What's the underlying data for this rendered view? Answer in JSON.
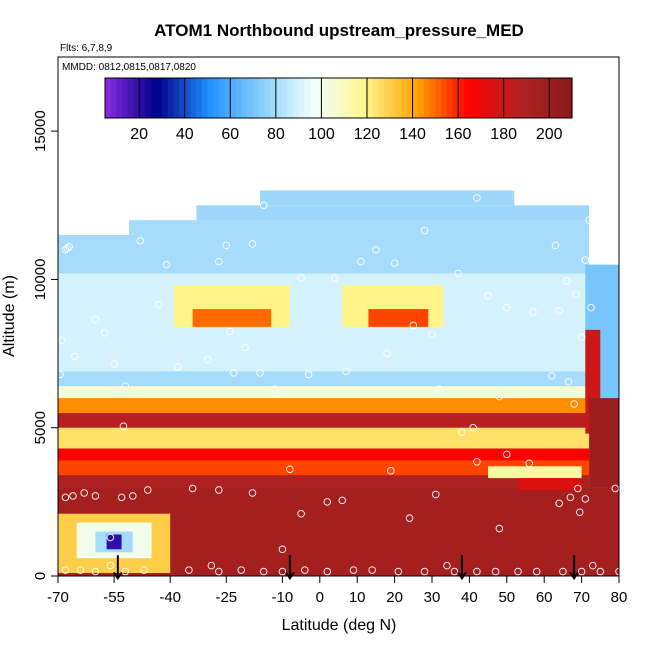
{
  "chart_data": {
    "type": "heatmap",
    "title": "ATOM1 Northbound upstream_pressure_MED",
    "subtitle": "Flts: 6,7,8,9",
    "annotation": "MMDD: 0812,0815,0817,0820",
    "xlabel": "Latitude (deg N)",
    "ylabel": "Altitude (m)",
    "xlim": [
      -70,
      80
    ],
    "ylim": [
      0,
      17500
    ],
    "x_ticks": [
      -70,
      -55,
      -40,
      -25,
      -10,
      0,
      10,
      20,
      30,
      40,
      50,
      60,
      70,
      80
    ],
    "x_tick_labels": [
      "-70",
      "-55",
      "-40",
      "-25",
      "-10",
      "0",
      "10",
      "20",
      "30",
      "40",
      "50",
      "60",
      "70",
      "80"
    ],
    "y_ticks": [
      0,
      5000,
      10000,
      15000
    ],
    "y_tick_labels": [
      "0",
      "5000",
      "10000",
      "15000"
    ],
    "colorbar": {
      "range": [
        5,
        210
      ],
      "ticks": [
        20,
        40,
        60,
        80,
        100,
        120,
        140,
        160,
        180,
        200
      ],
      "tick_labels": [
        "20",
        "40",
        "60",
        "80",
        "100",
        "120",
        "140",
        "160",
        "180",
        "200"
      ],
      "palette": [
        "#8a2be2",
        "#00008b",
        "#1e90ff",
        "#87cefa",
        "#f0ffff",
        "#fff68f",
        "#ffa500",
        "#ff0000",
        "#b22222",
        "#8b1a1a"
      ]
    },
    "field_description": "upstream pressure median by latitude and altitude",
    "arrow_latitudes": [
      -54,
      -8,
      38,
      68
    ],
    "fill_regions": [
      {
        "x0": -70,
        "x1": 80,
        "y0": 0,
        "y1": 3000,
        "value": 195
      },
      {
        "x0": -70,
        "x1": 72,
        "y0": 3000,
        "y1": 4300,
        "value": 190
      },
      {
        "x0": -70,
        "x1": 72,
        "y0": 3400,
        "y1": 3900,
        "value": 155
      },
      {
        "x0": -70,
        "x1": 72,
        "y0": 3900,
        "y1": 4300,
        "value": 165
      },
      {
        "x0": -70,
        "x1": 72,
        "y0": 4300,
        "y1": 5000,
        "value": 125
      },
      {
        "x0": -70,
        "x1": 72,
        "y0": 5000,
        "y1": 5500,
        "value": 185
      },
      {
        "x0": -70,
        "x1": 72,
        "y0": 5500,
        "y1": 6000,
        "value": 145
      },
      {
        "x0": -70,
        "x1": 72,
        "y0": 6000,
        "y1": 6400,
        "value": 105
      },
      {
        "x0": -70,
        "x1": 72,
        "y0": 6400,
        "y1": 11500,
        "value": 80
      },
      {
        "x0": -51,
        "x1": 72,
        "y0": 11500,
        "y1": 12000,
        "value": 80
      },
      {
        "x0": -33,
        "x1": 72,
        "y0": 12000,
        "y1": 12500,
        "value": 78
      },
      {
        "x0": -16,
        "x1": 52,
        "y0": 12500,
        "y1": 13000,
        "value": 78
      },
      {
        "x0": -70,
        "x1": 72,
        "y0": 6900,
        "y1": 10200,
        "value": 90
      },
      {
        "x0": -39,
        "x1": -8,
        "y0": 8400,
        "y1": 9800,
        "value": 120
      },
      {
        "x0": -34,
        "x1": -13,
        "y0": 8400,
        "y1": 9000,
        "value": 150
      },
      {
        "x0": 6,
        "x1": 33,
        "y0": 8400,
        "y1": 9800,
        "value": 120
      },
      {
        "x0": 13,
        "x1": 29,
        "y0": 8400,
        "y1": 9000,
        "value": 155
      },
      {
        "x0": 71,
        "x1": 80,
        "y0": 6000,
        "y1": 10500,
        "value": 70
      },
      {
        "x0": 71,
        "x1": 75,
        "y0": 4800,
        "y1": 8300,
        "value": 180
      },
      {
        "x0": 72,
        "x1": 80,
        "y0": 3000,
        "y1": 6000,
        "value": 200
      },
      {
        "x0": 45,
        "x1": 70,
        "y0": 3300,
        "y1": 3700,
        "value": 115
      },
      {
        "x0": 53,
        "x1": 70,
        "y0": 2900,
        "y1": 3300,
        "value": 175
      },
      {
        "x0": -70,
        "x1": -40,
        "y0": 100,
        "y1": 2100,
        "value": 130
      },
      {
        "x0": -65,
        "x1": -45,
        "y0": 600,
        "y1": 1800,
        "value": 100
      },
      {
        "x0": -60,
        "x1": -50,
        "y0": 800,
        "y1": 1500,
        "value": 80
      },
      {
        "x0": -57,
        "x1": -53,
        "y0": 900,
        "y1": 1400,
        "value": 20
      }
    ],
    "sample_points": [
      [
        -69,
        7950
      ],
      [
        -69.5,
        6800
      ],
      [
        -68,
        11000
      ],
      [
        -67.5,
        11050
      ],
      [
        -67,
        11100
      ],
      [
        -65.5,
        7400
      ],
      [
        -60,
        8650
      ],
      [
        -57.5,
        8200
      ],
      [
        -55,
        7150
      ],
      [
        -52,
        6400
      ],
      [
        -52.5,
        5050
      ],
      [
        -48,
        11300
      ],
      [
        -43,
        9150
      ],
      [
        -41,
        10500
      ],
      [
        -38,
        7050
      ],
      [
        -30,
        7300
      ],
      [
        -27,
        10600
      ],
      [
        -25,
        11150
      ],
      [
        -24,
        8250
      ],
      [
        -23,
        6850
      ],
      [
        -20,
        7700
      ],
      [
        -18,
        11200
      ],
      [
        -16,
        6850
      ],
      [
        -15,
        12500
      ],
      [
        -12,
        6300
      ],
      [
        -5,
        10050
      ],
      [
        -3,
        6800
      ],
      [
        4,
        10050
      ],
      [
        7,
        6900
      ],
      [
        11,
        10600
      ],
      [
        15,
        11000
      ],
      [
        18,
        7500
      ],
      [
        20,
        10550
      ],
      [
        25,
        8450
      ],
      [
        28,
        11650
      ],
      [
        30,
        8150
      ],
      [
        32,
        6300
      ],
      [
        37,
        10200
      ],
      [
        38,
        4850
      ],
      [
        41,
        5000
      ],
      [
        42,
        12750
      ],
      [
        45,
        9450
      ],
      [
        48,
        6050
      ],
      [
        50,
        9050
      ],
      [
        57,
        8900
      ],
      [
        62,
        6750
      ],
      [
        63,
        11150
      ],
      [
        64,
        8950
      ],
      [
        66,
        9950
      ],
      [
        66.5,
        6550
      ],
      [
        68,
        5800
      ],
      [
        68.5,
        9500
      ],
      [
        70,
        8050
      ],
      [
        71,
        10650
      ],
      [
        72,
        12000
      ],
      [
        72.5,
        9050
      ],
      [
        -68,
        2650
      ],
      [
        -66,
        2700
      ],
      [
        -63,
        2800
      ],
      [
        -60,
        2700
      ],
      [
        -56,
        1300
      ],
      [
        -53,
        2650
      ],
      [
        -50,
        2700
      ],
      [
        -46,
        2900
      ],
      [
        -34,
        2950
      ],
      [
        -27,
        2900
      ],
      [
        -18,
        2800
      ],
      [
        -8,
        3600
      ],
      [
        -10,
        900
      ],
      [
        -5,
        2100
      ],
      [
        2,
        2500
      ],
      [
        6,
        2550
      ],
      [
        19,
        3550
      ],
      [
        24,
        1950
      ],
      [
        31,
        2750
      ],
      [
        42,
        3850
      ],
      [
        48,
        1600
      ],
      [
        50,
        4100
      ],
      [
        56,
        3800
      ],
      [
        64,
        2450
      ],
      [
        67,
        2650
      ],
      [
        69,
        2950
      ],
      [
        69.5,
        2150
      ],
      [
        71,
        2600
      ],
      [
        79,
        2950
      ],
      [
        -68,
        200
      ],
      [
        -64,
        200
      ],
      [
        -60,
        150
      ],
      [
        -56,
        350
      ],
      [
        -52,
        150
      ],
      [
        -47,
        200
      ],
      [
        -35,
        200
      ],
      [
        -29,
        350
      ],
      [
        -27,
        150
      ],
      [
        -21,
        200
      ],
      [
        -15,
        150
      ],
      [
        -10,
        150
      ],
      [
        -4,
        200
      ],
      [
        2,
        150
      ],
      [
        9,
        200
      ],
      [
        14,
        200
      ],
      [
        21,
        150
      ],
      [
        28,
        150
      ],
      [
        34,
        350
      ],
      [
        36,
        150
      ],
      [
        42,
        150
      ],
      [
        47,
        150
      ],
      [
        53,
        150
      ],
      [
        58,
        150
      ],
      [
        65,
        150
      ],
      [
        70,
        150
      ],
      [
        73,
        350
      ],
      [
        75,
        150
      ],
      [
        80,
        150
      ]
    ]
  }
}
